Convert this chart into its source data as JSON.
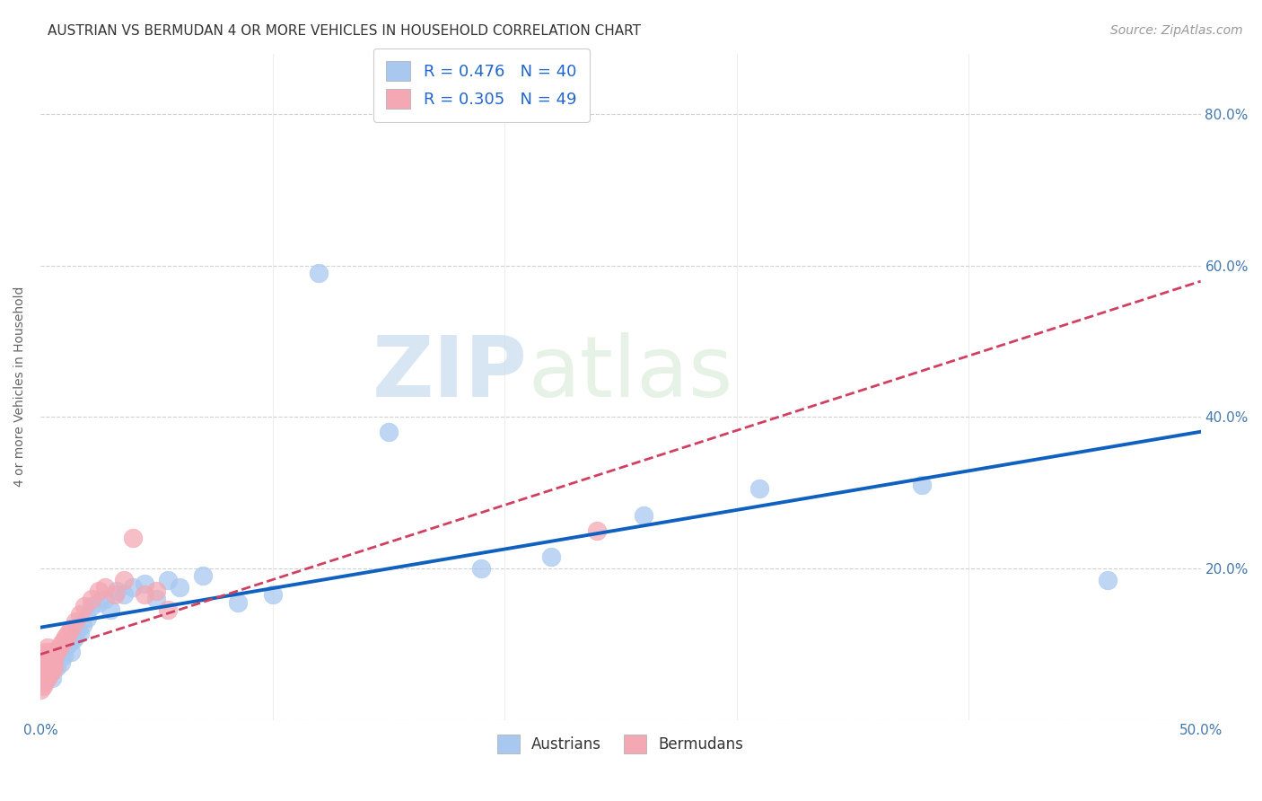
{
  "title": "AUSTRIAN VS BERMUDAN 4 OR MORE VEHICLES IN HOUSEHOLD CORRELATION CHART",
  "source": "Source: ZipAtlas.com",
  "ylabel": "4 or more Vehicles in Household",
  "xlim": [
    0.0,
    0.5
  ],
  "ylim": [
    0.0,
    0.88
  ],
  "xtick_positions": [
    0.0,
    0.5
  ],
  "xticklabels": [
    "0.0%",
    "50.0%"
  ],
  "yticks": [
    0.0,
    0.2,
    0.4,
    0.6,
    0.8
  ],
  "right_yticklabels": [
    "",
    "20.0%",
    "40.0%",
    "60.0%",
    "80.0%"
  ],
  "legend_r_austrians": "R = 0.476",
  "legend_n_austrians": "N = 40",
  "legend_r_bermudans": "R = 0.305",
  "legend_n_bermudans": "N = 49",
  "austrian_color": "#A8C8F0",
  "bermudan_color": "#F4A8B4",
  "austrian_line_color": "#1060C0",
  "bermudan_line_color": "#D04060",
  "watermark_zip": "ZIP",
  "watermark_atlas": "atlas",
  "grid_color": "#CCCCCC",
  "background_color": "#FFFFFF",
  "title_fontsize": 11,
  "axis_label_fontsize": 10,
  "tick_fontsize": 11,
  "legend_fontsize": 13,
  "source_fontsize": 10,
  "austrian_x": [
    0.002,
    0.003,
    0.004,
    0.005,
    0.006,
    0.007,
    0.008,
    0.009,
    0.01,
    0.011,
    0.012,
    0.013,
    0.014,
    0.015,
    0.016,
    0.017,
    0.018,
    0.02,
    0.022,
    0.025,
    0.028,
    0.03,
    0.033,
    0.036,
    0.04,
    0.045,
    0.05,
    0.055,
    0.06,
    0.07,
    0.085,
    0.1,
    0.12,
    0.15,
    0.19,
    0.22,
    0.26,
    0.31,
    0.38,
    0.46
  ],
  "austrian_y": [
    0.05,
    0.06,
    0.065,
    0.055,
    0.08,
    0.07,
    0.09,
    0.075,
    0.085,
    0.095,
    0.1,
    0.09,
    0.105,
    0.11,
    0.12,
    0.115,
    0.125,
    0.135,
    0.15,
    0.155,
    0.16,
    0.145,
    0.17,
    0.165,
    0.175,
    0.18,
    0.16,
    0.185,
    0.175,
    0.19,
    0.155,
    0.165,
    0.59,
    0.38,
    0.2,
    0.215,
    0.27,
    0.305,
    0.31,
    0.185
  ],
  "bermudan_x": [
    0.0,
    0.0,
    0.0,
    0.001,
    0.001,
    0.001,
    0.001,
    0.001,
    0.001,
    0.002,
    0.002,
    0.002,
    0.002,
    0.002,
    0.002,
    0.003,
    0.003,
    0.003,
    0.003,
    0.003,
    0.004,
    0.004,
    0.004,
    0.004,
    0.005,
    0.005,
    0.005,
    0.006,
    0.006,
    0.007,
    0.008,
    0.009,
    0.01,
    0.011,
    0.012,
    0.013,
    0.015,
    0.017,
    0.019,
    0.022,
    0.025,
    0.028,
    0.032,
    0.036,
    0.04,
    0.045,
    0.05,
    0.055,
    0.24
  ],
  "bermudan_y": [
    0.04,
    0.05,
    0.06,
    0.045,
    0.055,
    0.065,
    0.07,
    0.075,
    0.08,
    0.05,
    0.06,
    0.07,
    0.075,
    0.08,
    0.09,
    0.055,
    0.065,
    0.075,
    0.085,
    0.095,
    0.06,
    0.07,
    0.08,
    0.09,
    0.065,
    0.075,
    0.085,
    0.07,
    0.08,
    0.09,
    0.095,
    0.1,
    0.105,
    0.11,
    0.115,
    0.12,
    0.13,
    0.14,
    0.15,
    0.16,
    0.17,
    0.175,
    0.165,
    0.185,
    0.24,
    0.165,
    0.17,
    0.145,
    0.25
  ]
}
